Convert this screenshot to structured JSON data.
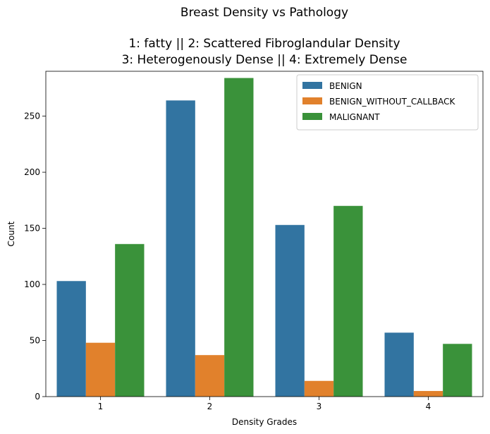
{
  "chart_data": {
    "type": "bar",
    "title": "Breast Density vs Pathology",
    "subtitle_lines": [
      "1: fatty || 2: Scattered Fibroglandular Density",
      "3: Heterogenously Dense || 4: Extremely Dense"
    ],
    "xlabel": "Density Grades",
    "ylabel": "Count",
    "categories": [
      "1",
      "2",
      "3",
      "4"
    ],
    "ylim": [
      0,
      290
    ],
    "yticks": [
      0,
      50,
      100,
      150,
      200,
      250
    ],
    "grid": false,
    "legend_position": "top-right",
    "series": [
      {
        "name": "BENIGN",
        "color": "#3274a1",
        "values": [
          103,
          264,
          153,
          57
        ]
      },
      {
        "name": "BENIGN_WITHOUT_CALLBACK",
        "color": "#e1812c",
        "values": [
          48,
          37,
          14,
          5
        ]
      },
      {
        "name": "MALIGNANT",
        "color": "#3a923a",
        "values": [
          136,
          284,
          170,
          47
        ]
      }
    ]
  }
}
